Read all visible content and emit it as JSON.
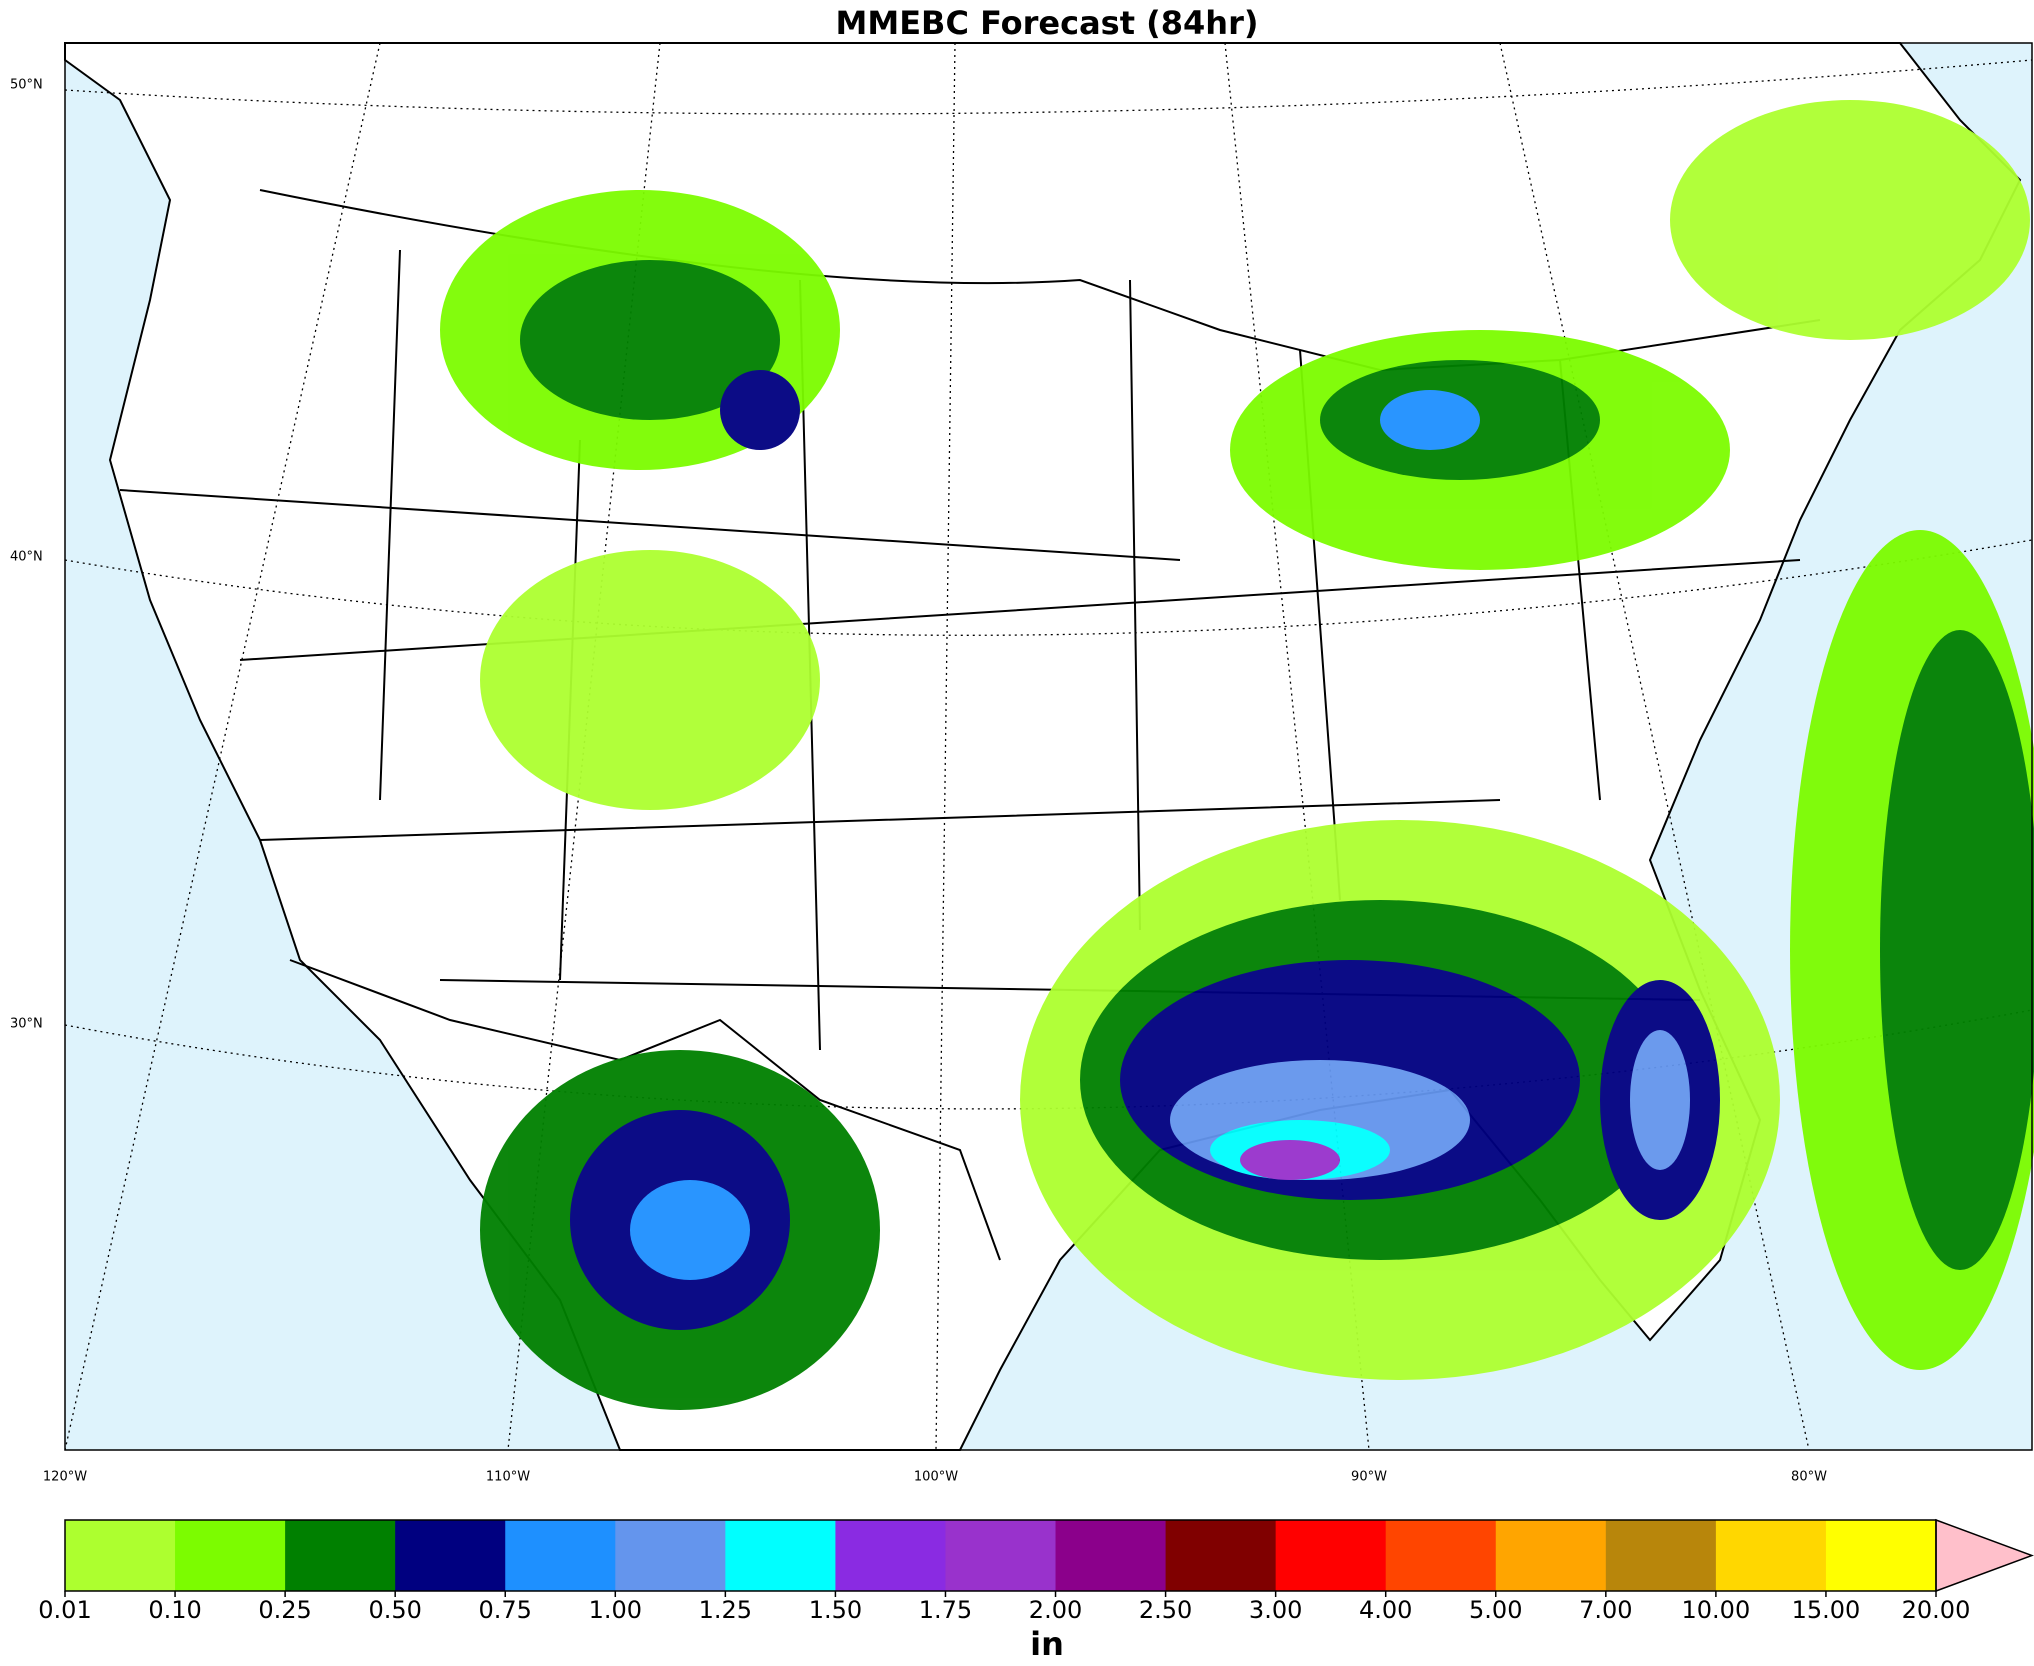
{
  "title": "MMEBC Forecast (84hr)",
  "map": {
    "lat_labels": [
      "50°N",
      "40°N",
      "30°N"
    ],
    "lon_labels": [
      "120°W",
      "110°W",
      "100°W",
      "90°W",
      "80°W"
    ]
  },
  "colorbar": {
    "label": "in",
    "ticks": [
      0.01,
      {
        "value": 0.1,
        "label": "0.10"
      },
      0.25,
      {
        "value": 0.5,
        "label": "0.50"
      },
      0.75,
      {
        "value": 1,
        "label": "1.00"
      },
      1.25,
      {
        "value": 1.5,
        "label": "1.50"
      },
      1.75,
      {
        "value": 2,
        "label": "2.00"
      },
      {
        "value": 2.5,
        "label": "2.50"
      },
      {
        "value": 3,
        "label": "3.00"
      },
      {
        "value": 4,
        "label": "4.00"
      },
      {
        "value": 5,
        "label": "5.00"
      },
      {
        "value": 7,
        "label": "7.00"
      },
      {
        "value": 10,
        "label": "10.00"
      },
      {
        "value": 15,
        "label": "15.00"
      },
      {
        "value": 20,
        "label": "20.00"
      }
    ],
    "colors": [
      "#adff2f",
      "#7cfc00",
      "#008000",
      "#000080",
      "#1e90ff",
      "#6495ed",
      "#00ffff",
      "#8a2be2",
      "#9932cc",
      "#8b008b",
      "#800000",
      "#ff0000",
      "#ff4500",
      "#ffa500",
      "#b8860b",
      "#ffd700",
      "#ffff00"
    ],
    "extend_color": "#ffc0cb"
  }
}
